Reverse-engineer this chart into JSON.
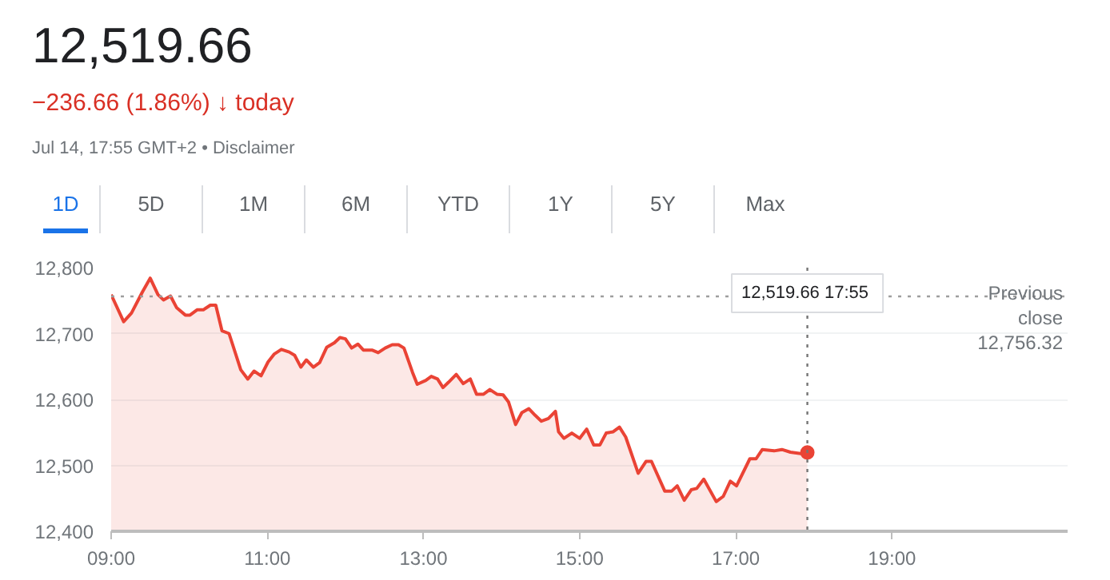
{
  "chart_data": {
    "type": "area",
    "title": "12,519.66",
    "subtitle": "−236.66 (1.86%) ↓ today",
    "annotations": [
      "Jul 14, 17:55 GMT+2 • Disclaimer",
      "1D",
      "5D",
      "1M",
      "6M",
      "YTD",
      "1Y",
      "5Y",
      "Max",
      "12,519.66  17:55"
    ],
    "xlim": [
      9,
      21.25
    ],
    "xticks": [
      {
        "value": 9,
        "label": "09:00"
      },
      {
        "value": 11,
        "label": "11:00"
      },
      {
        "value": 13,
        "label": "13:00"
      },
      {
        "value": 15,
        "label": "15:00"
      },
      {
        "value": 17,
        "label": "17:00"
      },
      {
        "value": 19,
        "label": "19:00"
      }
    ],
    "ylim": [
      12400,
      12800
    ],
    "yticks": [
      {
        "value": 12400,
        "label": "12,400"
      },
      {
        "value": 12500,
        "label": "12,500"
      },
      {
        "value": 12600,
        "label": "12,600"
      },
      {
        "value": 12700,
        "label": "12,700"
      },
      {
        "value": 12800,
        "label": "12,800"
      }
    ],
    "grid": "y",
    "ref_lines": [
      {
        "axis": "y",
        "value": 12756.32,
        "label": "Previous close 12,756.32",
        "line_style": "dotted",
        "color": "#9e9e9e"
      },
      {
        "axis": "x",
        "value": 17.9167,
        "label": null,
        "line_style": "dotted",
        "color": "#757575"
      }
    ],
    "series": [
      {
        "color": "#ea4335",
        "x": [
          9.0,
          9.16,
          9.26,
          9.4,
          9.5,
          9.6,
          9.67,
          9.76,
          9.84,
          9.95,
          10.01,
          10.1,
          10.18,
          10.27,
          10.34,
          10.42,
          10.51,
          10.66,
          10.75,
          10.83,
          10.92,
          11.01,
          11.09,
          11.18,
          11.28,
          11.35,
          11.43,
          11.5,
          11.59,
          11.67,
          11.76,
          11.86,
          11.93,
          12.0,
          12.08,
          12.16,
          12.23,
          12.34,
          12.42,
          12.51,
          12.6,
          12.68,
          12.75,
          12.86,
          12.92,
          13.03,
          13.1,
          13.18,
          13.25,
          13.32,
          13.42,
          13.51,
          13.6,
          13.68,
          13.77,
          13.85,
          13.94,
          14.02,
          14.09,
          14.18,
          14.26,
          14.35,
          14.43,
          14.51,
          14.6,
          14.69,
          14.73,
          14.8,
          14.9,
          15.0,
          15.09,
          15.18,
          15.26,
          15.34,
          15.43,
          15.51,
          15.59,
          15.75,
          15.85,
          15.92,
          16.09,
          16.18,
          16.25,
          16.34,
          16.43,
          16.5,
          16.59,
          16.75,
          16.84,
          16.93,
          17.01,
          17.18,
          17.26,
          17.34,
          17.49,
          17.59,
          17.7,
          17.83,
          17.9167
        ],
        "values": [
          12759,
          12718,
          12731,
          12763,
          12784,
          12759,
          12751,
          12757,
          12739,
          12728,
          12728,
          12736,
          12736,
          12743,
          12743,
          12704,
          12700,
          12645,
          12631,
          12643,
          12636,
          12657,
          12669,
          12676,
          12672,
          12667,
          12649,
          12660,
          12649,
          12656,
          12679,
          12686,
          12694,
          12692,
          12678,
          12684,
          12675,
          12675,
          12671,
          12678,
          12683,
          12683,
          12678,
          12641,
          12623,
          12629,
          12635,
          12631,
          12618,
          12626,
          12638,
          12624,
          12631,
          12608,
          12608,
          12615,
          12608,
          12607,
          12596,
          12562,
          12580,
          12586,
          12576,
          12567,
          12571,
          12582,
          12551,
          12541,
          12549,
          12541,
          12555,
          12531,
          12531,
          12549,
          12551,
          12558,
          12543,
          12488,
          12506,
          12506,
          12461,
          12461,
          12469,
          12447,
          12463,
          12465,
          12479,
          12445,
          12453,
          12476,
          12469,
          12510,
          12510,
          12524,
          12522,
          12524,
          12520,
          12518,
          12519.66
        ]
      }
    ]
  }
}
